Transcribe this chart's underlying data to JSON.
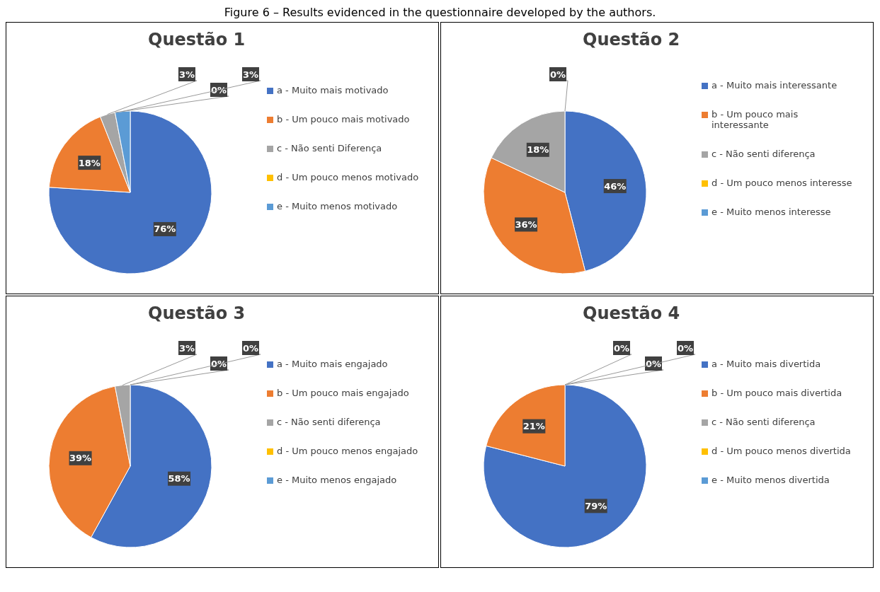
{
  "chart_data": [
    {
      "type": "pie",
      "title": "Questão 1",
      "annotations": [
        "Figure 6 – Results evidenced in the questionnaire developed by the authors."
      ],
      "categories": [
        "a -  Muito mais motivado",
        "b - Um pouco mais motivado",
        "c - Não senti Diferença",
        "d - Um pouco menos motivado",
        "e - Muito menos motivado"
      ],
      "values": [
        76,
        18,
        3,
        0,
        3
      ],
      "value_labels": [
        "76%",
        "18%",
        "3%",
        "0%",
        "3%"
      ],
      "colors": [
        "#4472c4",
        "#ed7d31",
        "#a5a5a5",
        "#ffc000",
        "#5b9bd5"
      ],
      "legend": "right"
    },
    {
      "type": "pie",
      "title": "Questão 2",
      "categories": [
        "a - Muito mais interessante",
        "b - Um pouco mais interessante",
        "c - Não senti diferença",
        "d - Um pouco menos interesse",
        "e - Muito menos interesse"
      ],
      "values": [
        46,
        36,
        18,
        0,
        0
      ],
      "value_labels": [
        "46%",
        "36%",
        "18%",
        "0%",
        null
      ],
      "colors": [
        "#4472c4",
        "#ed7d31",
        "#a5a5a5",
        "#ffc000",
        "#5b9bd5"
      ],
      "legend": "right"
    },
    {
      "type": "pie",
      "title": "Questão 3",
      "categories": [
        "a - Muito mais engajado",
        "b - Um pouco mais engajado",
        "c - Não senti diferença",
        "d - Um pouco menos engajado",
        "e - Muito menos engajado"
      ],
      "values": [
        58,
        39,
        3,
        0,
        0
      ],
      "value_labels": [
        "58%",
        "39%",
        "3%",
        "0%",
        "0%"
      ],
      "colors": [
        "#4472c4",
        "#ed7d31",
        "#a5a5a5",
        "#ffc000",
        "#5b9bd5"
      ],
      "legend": "right"
    },
    {
      "type": "pie",
      "title": "Questão 4",
      "categories": [
        "a - Muito mais divertida",
        "b - Um pouco mais divertida",
        "c - Não senti diferença",
        "d - Um pouco menos divertida",
        "e - Muito menos divertida"
      ],
      "values": [
        79,
        21,
        0,
        0,
        0
      ],
      "value_labels": [
        "79%",
        "21%",
        "0%",
        "0%",
        "0%"
      ],
      "colors": [
        "#4472c4",
        "#ed7d31",
        "#a5a5a5",
        "#ffc000",
        "#5b9bd5"
      ],
      "legend": "right"
    }
  ]
}
